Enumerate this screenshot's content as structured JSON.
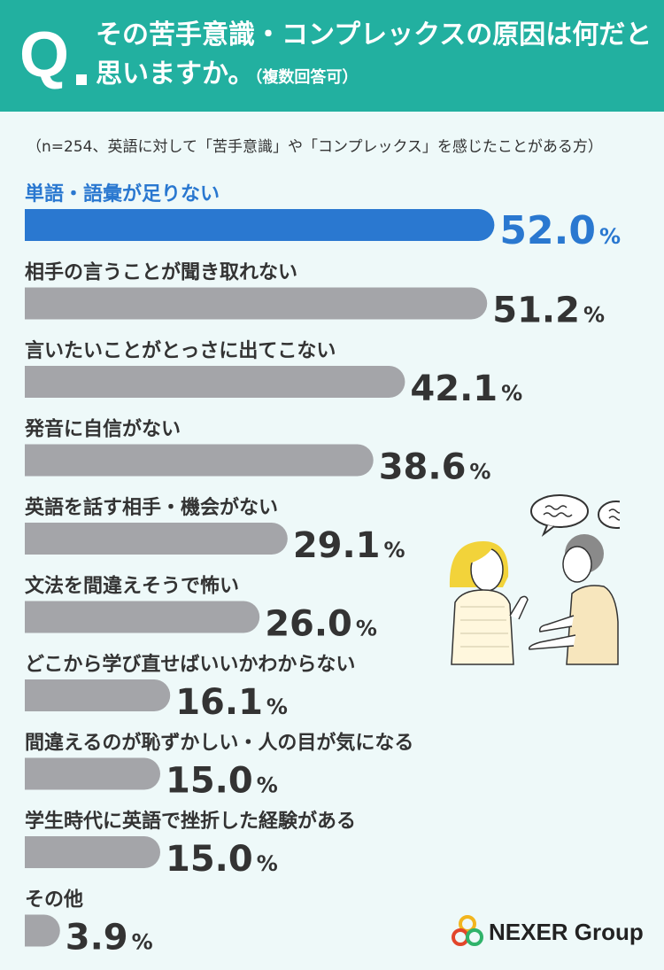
{
  "header": {
    "q_mark": "Q",
    "question_line1": "その苦手意識・コンプレックスの原因は何だと",
    "question_line2": "思いますか。",
    "question_note": "（複数回答可）"
  },
  "note": "（n=254、英語に対して「苦手意識」や「コンプレックス」を感じたことがある方）",
  "colors": {
    "header": "#22b0a0",
    "highlight": "#2a78d0",
    "bar": "#a4a5a9",
    "text": "#333333"
  },
  "chart_data": {
    "type": "bar",
    "orientation": "horizontal",
    "categories": [
      "単語・語彙が足りない",
      "相手の言うことが聞き取れない",
      "言いたいことがとっさに出てこない",
      "発音に自信がない",
      "英語を話す相手・機会がない",
      "文法を間違えそうで怖い",
      "どこから学び直せばいいかわからない",
      "間違えるのが恥ずかしい・人の目が気になる",
      "学生時代に英語で挫折した経験がある",
      "その他"
    ],
    "values": [
      52.0,
      51.2,
      42.1,
      38.6,
      29.1,
      26.0,
      16.1,
      15.0,
      15.0,
      3.9
    ],
    "value_labels": [
      "52.0",
      "51.2",
      "42.1",
      "38.6",
      "29.1",
      "26.0",
      "16.1",
      "15.0",
      "15.0",
      "3.9"
    ],
    "unit": "%",
    "highlight_index": 0
  },
  "logo": {
    "name": "NEXER Group"
  }
}
